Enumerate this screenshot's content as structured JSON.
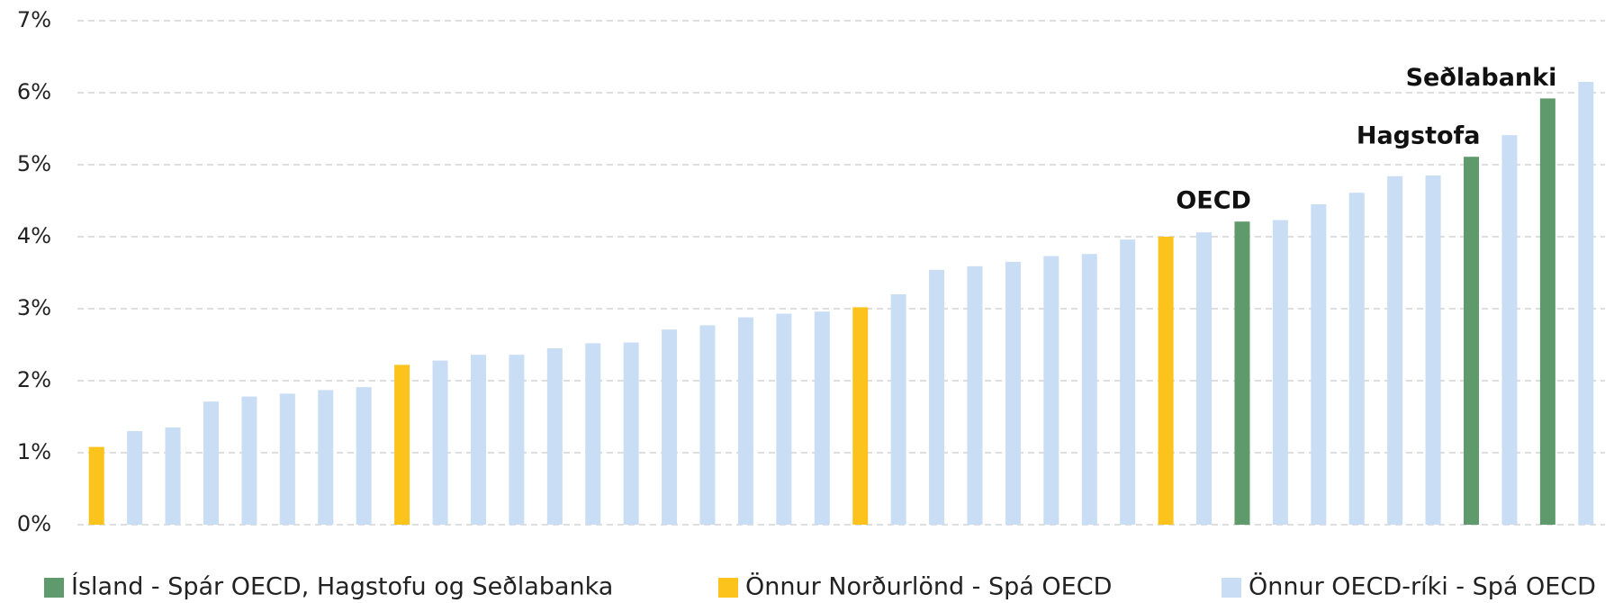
{
  "chart_data": {
    "type": "bar",
    "categories": [
      null,
      null,
      null,
      null,
      null,
      null,
      null,
      null,
      null,
      null,
      null,
      null,
      null,
      null,
      null,
      null,
      null,
      null,
      null,
      null,
      null,
      null,
      null,
      null,
      null,
      null,
      null,
      null,
      null,
      null,
      null,
      null,
      null,
      null,
      null,
      null,
      null,
      null,
      null,
      null
    ],
    "values": [
      1.08,
      1.3,
      1.35,
      1.71,
      1.78,
      1.82,
      1.87,
      1.91,
      2.22,
      2.28,
      2.36,
      2.36,
      2.45,
      2.52,
      2.53,
      2.71,
      2.77,
      2.88,
      2.93,
      2.96,
      3.02,
      3.2,
      3.54,
      3.59,
      3.65,
      3.73,
      3.76,
      3.96,
      4.0,
      4.06,
      4.21,
      4.23,
      4.45,
      4.61,
      4.84,
      4.85,
      5.11,
      5.41,
      5.92,
      6.15
    ],
    "colors": [
      "#fbc31c",
      "#c9ddf4",
      "#c9ddf4",
      "#c9ddf4",
      "#c9ddf4",
      "#c9ddf4",
      "#c9ddf4",
      "#c9ddf4",
      "#fbc31c",
      "#c9ddf4",
      "#c9ddf4",
      "#c9ddf4",
      "#c9ddf4",
      "#c9ddf4",
      "#c9ddf4",
      "#c9ddf4",
      "#c9ddf4",
      "#c9ddf4",
      "#c9ddf4",
      "#c9ddf4",
      "#fbc31c",
      "#c9ddf4",
      "#c9ddf4",
      "#c9ddf4",
      "#c9ddf4",
      "#c9ddf4",
      "#c9ddf4",
      "#c9ddf4",
      "#fbc31c",
      "#c9ddf4",
      "#5e9a6b",
      "#c9ddf4",
      "#c9ddf4",
      "#c9ddf4",
      "#c9ddf4",
      "#c9ddf4",
      "#5e9a6b",
      "#c9ddf4",
      "#5e9a6b",
      "#c9ddf4"
    ],
    "ylim": [
      0,
      7
    ],
    "yticks": [
      {
        "value": 0,
        "label": "0%"
      },
      {
        "value": 1,
        "label": "1%"
      },
      {
        "value": 2,
        "label": "2%"
      },
      {
        "value": 3,
        "label": "3%"
      },
      {
        "value": 4,
        "label": "4%"
      },
      {
        "value": 5,
        "label": "5%"
      },
      {
        "value": 6,
        "label": "6%"
      },
      {
        "value": 7,
        "label": "7%"
      }
    ],
    "grid": true,
    "annotations": [
      {
        "text": "OECD",
        "bar": 30
      },
      {
        "text": "Hagstofa",
        "bar": 36
      },
      {
        "text": "Seðlabanki",
        "bar": 38
      }
    ],
    "legend": [
      {
        "name": "Ísland - Spár OECD, Hagstofu og Seðlabanka",
        "color": "#5e9a6b"
      },
      {
        "name": "Önnur Norðurlönd - Spá OECD",
        "color": "#fbc31c"
      },
      {
        "name": "Önnur OECD-ríki - Spá OECD",
        "color": "#c9ddf4"
      }
    ]
  }
}
